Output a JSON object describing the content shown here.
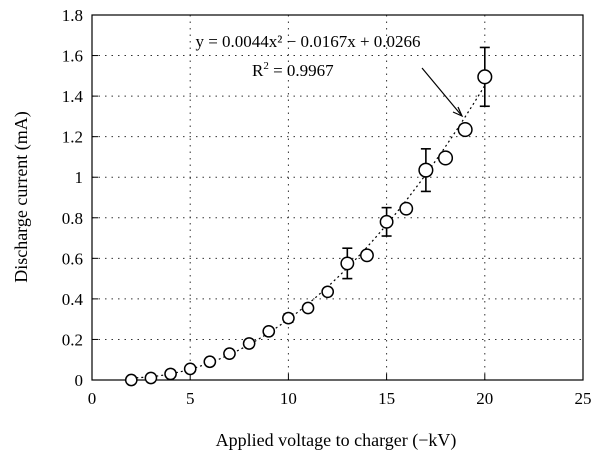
{
  "chart_data": {
    "type": "scatter",
    "xlabel": "Applied voltage to charger (−kV)",
    "ylabel": "Discharge current (mA)",
    "xlim": [
      0,
      25
    ],
    "ylim": [
      0,
      1.8
    ],
    "x_ticks": [
      "0",
      "5",
      "10",
      "15",
      "20",
      "25"
    ],
    "y_ticks": [
      "0",
      "0.2",
      "0.4",
      "0.6",
      "0.8",
      "1",
      "1.2",
      "1.4",
      "1.6",
      "1.8"
    ],
    "grid": true,
    "points": [
      {
        "x": 2,
        "y": 0.0,
        "err": 0
      },
      {
        "x": 3,
        "y": 0.01,
        "err": 0
      },
      {
        "x": 4,
        "y": 0.03,
        "err": 0
      },
      {
        "x": 5,
        "y": 0.055,
        "err": 0
      },
      {
        "x": 6,
        "y": 0.09,
        "err": 0
      },
      {
        "x": 7,
        "y": 0.13,
        "err": 0
      },
      {
        "x": 8,
        "y": 0.18,
        "err": 0
      },
      {
        "x": 9,
        "y": 0.24,
        "err": 0.015
      },
      {
        "x": 10,
        "y": 0.305,
        "err": 0.02
      },
      {
        "x": 11,
        "y": 0.355,
        "err": 0
      },
      {
        "x": 12,
        "y": 0.435,
        "err": 0
      },
      {
        "x": 13,
        "y": 0.575,
        "err": 0.075
      },
      {
        "x": 14,
        "y": 0.615,
        "err": 0
      },
      {
        "x": 15,
        "y": 0.78,
        "err": 0.07
      },
      {
        "x": 16,
        "y": 0.845,
        "err": 0
      },
      {
        "x": 17,
        "y": 1.035,
        "err": 0.105
      },
      {
        "x": 18,
        "y": 1.095,
        "err": 0
      },
      {
        "x": 19,
        "y": 1.235,
        "err": 0
      },
      {
        "x": 20,
        "y": 1.495,
        "err": 0.145
      }
    ],
    "fit": {
      "a": 0.0044,
      "b": -0.0167,
      "c": 0.0266
    },
    "annotation": {
      "equation": "y = 0.0044x² − 0.0167x + 0.0266",
      "r2_prefix": "R",
      "r2_sup": "2",
      "r2_value": " = 0.9967"
    }
  }
}
